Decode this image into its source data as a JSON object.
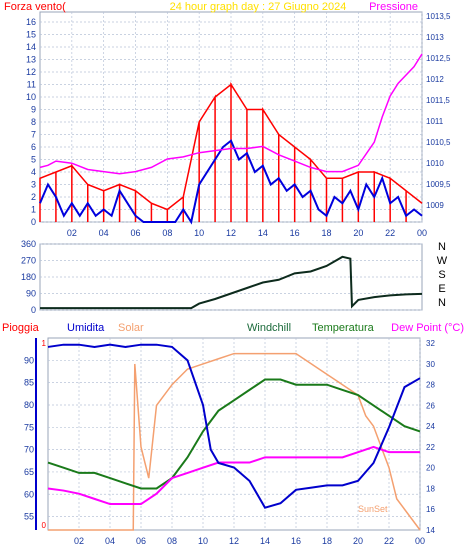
{
  "chart_data": [
    {
      "type": "line",
      "title": "24 hour graph day : 27 Giugno 2024",
      "left_label": "Forza vento(",
      "right_label": "Pressione",
      "x_ticks": [
        "02",
        "04",
        "06",
        "08",
        "10",
        "12",
        "14",
        "16",
        "18",
        "20",
        "22",
        "00"
      ],
      "y_left_ticks": [
        "0",
        "1",
        "2",
        "3",
        "4",
        "5",
        "6",
        "7",
        "8",
        "9",
        "10",
        "11",
        "12",
        "13",
        "14",
        "15",
        "16"
      ],
      "y_right_ticks": [
        "1009",
        "1009,5",
        "1010",
        "1010,5",
        "1011",
        "1011,5",
        "1012",
        "1012,5",
        "1013",
        "1013,5"
      ],
      "ylim_left": [
        0,
        16.8
      ],
      "ylim_right": [
        1008.6,
        1013.6
      ],
      "x_range_hours": [
        0,
        24
      ],
      "grid": true,
      "colors": {
        "gust": "#ff0000",
        "wind": "#0000dd",
        "pressure": "#ff00ff",
        "title": "#ffe000",
        "left_label": "#ff0000",
        "right_label": "#ff00ff"
      },
      "series": [
        {
          "key": "gust",
          "points": [
            [
              0,
              3.5
            ],
            [
              1,
              4
            ],
            [
              2,
              4.5
            ],
            [
              3,
              3
            ],
            [
              4,
              2.5
            ],
            [
              5,
              3
            ],
            [
              6,
              2.5
            ],
            [
              7,
              1.5
            ],
            [
              8,
              1
            ],
            [
              9,
              2
            ],
            [
              10,
              8
            ],
            [
              11,
              10
            ],
            [
              12,
              11
            ],
            [
              13,
              9
            ],
            [
              14,
              9
            ],
            [
              15,
              7
            ],
            [
              16,
              6
            ],
            [
              17,
              5
            ],
            [
              18,
              3.5
            ],
            [
              19,
              3.5
            ],
            [
              20,
              4
            ],
            [
              21,
              4
            ],
            [
              22,
              3.5
            ],
            [
              23,
              2.5
            ],
            [
              24,
              1.5
            ]
          ]
        },
        {
          "key": "wind",
          "points": [
            [
              0,
              1.5
            ],
            [
              0.5,
              3
            ],
            [
              1,
              2
            ],
            [
              1.5,
              0.5
            ],
            [
              2,
              1.5
            ],
            [
              2.5,
              0.5
            ],
            [
              3,
              1.5
            ],
            [
              3.5,
              0.5
            ],
            [
              4,
              1
            ],
            [
              4.5,
              0.5
            ],
            [
              5,
              2.5
            ],
            [
              5.5,
              1.5
            ],
            [
              6,
              0.5
            ],
            [
              6.5,
              0
            ],
            [
              8,
              0
            ],
            [
              8.5,
              0
            ],
            [
              9,
              1
            ],
            [
              9.5,
              0
            ],
            [
              10,
              3
            ],
            [
              10.5,
              4
            ],
            [
              11,
              5
            ],
            [
              11.5,
              6
            ],
            [
              12,
              6.5
            ],
            [
              12.5,
              5
            ],
            [
              13,
              5.5
            ],
            [
              13.5,
              4
            ],
            [
              14,
              4.5
            ],
            [
              14.5,
              3
            ],
            [
              15,
              3.5
            ],
            [
              15.5,
              2.5
            ],
            [
              16,
              3
            ],
            [
              16.5,
              2
            ],
            [
              17,
              2.5
            ],
            [
              17.5,
              1
            ],
            [
              18,
              0.5
            ],
            [
              18.5,
              2
            ],
            [
              19,
              1.5
            ],
            [
              19.5,
              2.5
            ],
            [
              20,
              1
            ],
            [
              20.5,
              3
            ],
            [
              21,
              2
            ],
            [
              21.5,
              3.5
            ],
            [
              22,
              1.5
            ],
            [
              22.5,
              2
            ],
            [
              23,
              0.5
            ],
            [
              23.5,
              1
            ],
            [
              24,
              0.5
            ]
          ]
        },
        {
          "key": "pressure",
          "points": [
            [
              0,
              1009.9
            ],
            [
              0.5,
              1009.95
            ],
            [
              1,
              1010.05
            ],
            [
              2,
              1010.0
            ],
            [
              3,
              1009.85
            ],
            [
              4,
              1009.8
            ],
            [
              5,
              1009.75
            ],
            [
              6,
              1009.8
            ],
            [
              7,
              1009.9
            ],
            [
              8,
              1010.1
            ],
            [
              9,
              1010.15
            ],
            [
              10,
              1010.25
            ],
            [
              11,
              1010.3
            ],
            [
              12,
              1010.35
            ],
            [
              13,
              1010.35
            ],
            [
              14,
              1010.4
            ],
            [
              15,
              1010.2
            ],
            [
              16,
              1010.05
            ],
            [
              17,
              1009.9
            ],
            [
              18,
              1009.8
            ],
            [
              19,
              1009.8
            ],
            [
              20,
              1009.95
            ],
            [
              21,
              1010.5
            ],
            [
              21.5,
              1011.1
            ],
            [
              22,
              1011.6
            ],
            [
              22.5,
              1011.9
            ],
            [
              23,
              1012.1
            ],
            [
              23.5,
              1012.3
            ],
            [
              24,
              1012.6
            ]
          ]
        }
      ]
    },
    {
      "type": "line",
      "y_ticks": [
        "0",
        "90",
        "180",
        "270",
        "360"
      ],
      "ylim": [
        0,
        360
      ],
      "compass": [
        "N",
        "W",
        "S",
        "E",
        "N"
      ],
      "colors": {
        "direction": "#0d2b1d"
      },
      "series": [
        {
          "key": "direction",
          "points": [
            [
              0,
              10
            ],
            [
              9.5,
              10
            ],
            [
              10,
              35
            ],
            [
              11,
              60
            ],
            [
              12,
              90
            ],
            [
              13,
              120
            ],
            [
              14,
              150
            ],
            [
              15,
              165
            ],
            [
              16,
              200
            ],
            [
              17,
              210
            ],
            [
              18,
              240
            ],
            [
              19,
              290
            ],
            [
              19.5,
              280
            ],
            [
              19.6,
              20
            ],
            [
              20,
              55
            ],
            [
              21,
              70
            ],
            [
              22,
              80
            ],
            [
              23,
              85
            ],
            [
              24,
              88
            ]
          ]
        }
      ]
    },
    {
      "type": "line",
      "labels": {
        "pioggia": "Pioggia",
        "umidita": "Umidita",
        "solar": "Solar",
        "windchill": "Windchill",
        "temperatura": "Temperatura",
        "dewpoint": "Dew Point (°C)",
        "sunset": "SunSet"
      },
      "x_ticks": [
        "02",
        "04",
        "06",
        "08",
        "10",
        "12",
        "14",
        "16",
        "18",
        "20",
        "22",
        "00"
      ],
      "y_left_ticks": [
        "55",
        "60",
        "65",
        "70",
        "75",
        "80",
        "85",
        "90"
      ],
      "y_left_edge_ticks": [
        "0",
        "1"
      ],
      "y_right_ticks": [
        "14",
        "16",
        "18",
        "20",
        "22",
        "24",
        "26",
        "28",
        "30",
        "32"
      ],
      "ylim_left": [
        52,
        95
      ],
      "ylim_right": [
        14,
        32.5
      ],
      "x_range_hours": [
        0,
        24
      ],
      "grid": true,
      "colors": {
        "pioggia": "#ff0000",
        "umidita": "#0000cc",
        "solar": "#f4a070",
        "windchill": "#1a6a3a",
        "temperatura": "#1a7a1a",
        "dewpoint": "#ff00ff",
        "sunset": "#f4a070"
      },
      "series": [
        {
          "key": "humidity",
          "axis": "left",
          "points": [
            [
              0,
              93
            ],
            [
              1,
              93.5
            ],
            [
              2,
              93.5
            ],
            [
              3,
              93
            ],
            [
              4,
              93.5
            ],
            [
              5,
              93
            ],
            [
              6,
              93.5
            ],
            [
              7,
              93.5
            ],
            [
              8,
              93
            ],
            [
              9,
              90
            ],
            [
              10,
              80
            ],
            [
              10.5,
              70
            ],
            [
              11,
              67
            ],
            [
              12,
              66
            ],
            [
              13,
              63
            ],
            [
              14,
              57
            ],
            [
              15,
              58
            ],
            [
              16,
              61
            ],
            [
              17,
              61.5
            ],
            [
              18,
              62
            ],
            [
              19,
              62
            ],
            [
              20,
              63
            ],
            [
              21,
              67
            ],
            [
              22,
              75
            ],
            [
              23,
              84
            ],
            [
              24,
              86
            ]
          ]
        },
        {
          "key": "temperature",
          "axis": "right",
          "points": [
            [
              0,
              20.5
            ],
            [
              1,
              20
            ],
            [
              2,
              19.5
            ],
            [
              3,
              19.5
            ],
            [
              4,
              19
            ],
            [
              5,
              18.5
            ],
            [
              6,
              18
            ],
            [
              7,
              18
            ],
            [
              8,
              19
            ],
            [
              9,
              21
            ],
            [
              10,
              23.5
            ],
            [
              11,
              25.5
            ],
            [
              12,
              26.5
            ],
            [
              13,
              27.5
            ],
            [
              14,
              28.5
            ],
            [
              15,
              28.5
            ],
            [
              16,
              28
            ],
            [
              17,
              28
            ],
            [
              18,
              28
            ],
            [
              19,
              27.5
            ],
            [
              20,
              27
            ],
            [
              21,
              26
            ],
            [
              22,
              25
            ],
            [
              23,
              24
            ],
            [
              24,
              23.5
            ]
          ]
        },
        {
          "key": "dewpoint",
          "axis": "right",
          "points": [
            [
              0,
              18
            ],
            [
              1,
              17.8
            ],
            [
              2,
              17.5
            ],
            [
              3,
              17
            ],
            [
              4,
              16.5
            ],
            [
              5,
              16.5
            ],
            [
              6,
              16.5
            ],
            [
              7,
              17.5
            ],
            [
              8,
              19
            ],
            [
              9,
              19.5
            ],
            [
              10,
              20
            ],
            [
              11,
              20.5
            ],
            [
              12,
              20.5
            ],
            [
              13,
              20.5
            ],
            [
              14,
              21
            ],
            [
              15,
              21
            ],
            [
              16,
              21
            ],
            [
              17,
              21
            ],
            [
              18,
              21
            ],
            [
              19,
              21
            ],
            [
              20,
              21.5
            ],
            [
              21,
              22
            ],
            [
              22,
              21.5
            ],
            [
              23,
              21.5
            ],
            [
              24,
              21.5
            ]
          ]
        },
        {
          "key": "solar",
          "axis": "right",
          "points": [
            [
              0,
              14
            ],
            [
              5.5,
              14
            ],
            [
              5.6,
              30
            ],
            [
              6,
              22
            ],
            [
              6.5,
              19
            ],
            [
              7,
              26
            ],
            [
              8,
              28
            ],
            [
              9,
              29.5
            ],
            [
              10,
              30
            ],
            [
              11,
              30.5
            ],
            [
              12,
              31
            ],
            [
              13,
              31
            ],
            [
              14,
              31
            ],
            [
              15,
              31
            ],
            [
              16,
              31
            ],
            [
              17,
              30
            ],
            [
              18,
              29
            ],
            [
              19,
              28
            ],
            [
              20,
              27
            ],
            [
              20.5,
              25
            ],
            [
              21,
              24
            ],
            [
              21.5,
              22
            ],
            [
              22,
              20
            ],
            [
              22.5,
              17
            ],
            [
              23,
              16
            ],
            [
              23.5,
              15
            ],
            [
              24,
              14
            ]
          ]
        }
      ]
    }
  ]
}
